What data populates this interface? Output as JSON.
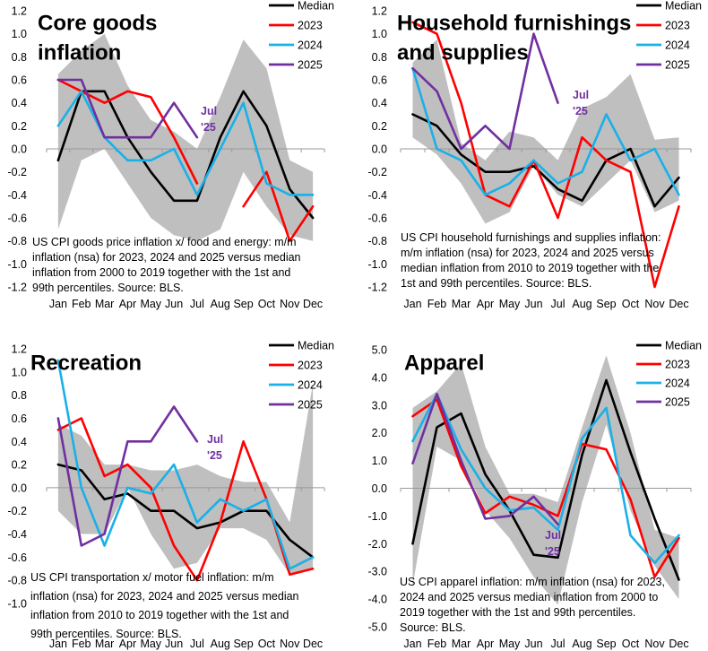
{
  "colors": {
    "median": "#000000",
    "y2023": "#ff0000",
    "y2024": "#1ab0e8",
    "y2025": "#7030a0",
    "band": "#bfbfbf"
  },
  "chart_data": [
    {
      "type": "line",
      "title": "Core goods inflation",
      "title_lines": [
        "Core goods",
        "inflation"
      ],
      "categories": [
        "Jan",
        "Feb",
        "Mar",
        "Apr",
        "May",
        "Jun",
        "Jul",
        "Aug",
        "Sep",
        "Oct",
        "Nov",
        "Dec"
      ],
      "ylim": [
        -1.2,
        1.2
      ],
      "yticks": [
        "1.2",
        "1.0",
        "0.8",
        "0.6",
        "0.4",
        "0.2",
        "0.0",
        "-0.2",
        "-0.4",
        "-0.6",
        "-0.8",
        "-1.0",
        "-1.2"
      ],
      "band": {
        "upper": [
          0.65,
          0.85,
          1.0,
          0.55,
          0.25,
          0.15,
          0.0,
          0.45,
          0.95,
          0.7,
          -0.1,
          -0.2
        ],
        "lower": [
          -0.7,
          -0.1,
          0.0,
          -0.3,
          -0.6,
          -0.75,
          -0.8,
          -0.7,
          -0.2,
          -0.5,
          -0.75,
          -0.8
        ]
      },
      "series": [
        {
          "name": "Median",
          "values": [
            -0.1,
            0.5,
            0.5,
            0.1,
            -0.2,
            -0.45,
            -0.45,
            0.1,
            0.5,
            0.2,
            -0.35,
            -0.6
          ]
        },
        {
          "name": "2023",
          "values": [
            0.6,
            0.5,
            0.4,
            0.5,
            0.45,
            0.1,
            -0.3,
            null,
            -0.5,
            -0.2,
            -0.8,
            -0.5
          ]
        },
        {
          "name": "2024",
          "values": [
            0.2,
            0.5,
            0.1,
            -0.1,
            -0.1,
            0.0,
            -0.4,
            0.0,
            0.4,
            -0.3,
            -0.4,
            -0.4
          ]
        },
        {
          "name": "2025",
          "values": [
            0.6,
            0.6,
            0.1,
            0.1,
            0.1,
            0.4,
            0.1,
            null,
            null,
            null,
            null,
            null
          ]
        }
      ],
      "legend": [
        "Median",
        "2023",
        "2024",
        "2025"
      ],
      "annotation": [
        "Jul",
        "'25"
      ],
      "caption": [
        "US CPI goods price inflation x/ food and energy: m/m",
        "inflation (nsa) for 2023, 2024 and 2025 versus median",
        "inflation from 2000 to 2019 together with the 1st and",
        "99th percentiles. Source: BLS."
      ]
    },
    {
      "type": "line",
      "title": "Household furnishings and supplies",
      "title_lines": [
        "Household furnishings",
        "and supplies"
      ],
      "categories": [
        "Jan",
        "Feb",
        "Mar",
        "Apr",
        "May",
        "Jun",
        "Jul",
        "Aug",
        "Sep",
        "Oct",
        "Nov",
        "Dec"
      ],
      "ylim": [
        -1.2,
        1.2
      ],
      "yticks": [
        "1.2",
        "1.0",
        "0.8",
        "0.6",
        "0.4",
        "0.2",
        "0.0",
        "-0.2",
        "-0.4",
        "-0.6",
        "-0.8",
        "-1.0",
        "-1.2"
      ],
      "band": {
        "upper": [
          0.75,
          0.95,
          0.05,
          -0.1,
          0.15,
          0.1,
          -0.1,
          0.35,
          0.45,
          0.65,
          0.08,
          0.1
        ],
        "lower": [
          0.1,
          -0.05,
          -0.3,
          -0.65,
          -0.55,
          -0.15,
          -0.4,
          -0.5,
          -0.3,
          -0.1,
          -0.55,
          -0.45
        ]
      },
      "series": [
        {
          "name": "Median",
          "values": [
            0.3,
            0.2,
            -0.05,
            -0.2,
            -0.2,
            -0.15,
            -0.35,
            -0.45,
            -0.1,
            0.0,
            -0.5,
            -0.25
          ]
        },
        {
          "name": "2023",
          "values": [
            1.1,
            1.0,
            0.4,
            -0.4,
            -0.5,
            -0.1,
            -0.6,
            0.1,
            -0.1,
            -0.2,
            -1.2,
            -0.5
          ]
        },
        {
          "name": "2024",
          "values": [
            0.7,
            0.0,
            -0.1,
            -0.4,
            -0.3,
            -0.1,
            -0.3,
            -0.2,
            0.3,
            -0.1,
            0.0,
            -0.4
          ]
        },
        {
          "name": "2025",
          "values": [
            0.7,
            0.5,
            0.0,
            0.2,
            0.0,
            1.0,
            0.4,
            null,
            null,
            null,
            null,
            null
          ]
        }
      ],
      "legend": [
        "Median",
        "2023",
        "2024",
        "2025"
      ],
      "annotation": [
        "Jul",
        "'25"
      ],
      "caption": [
        "US CPI household furnishings and supplies inflation:",
        "m/m inflation (nsa) for 2023, 2024 and 2025 versus",
        "median inflation from 2010 to 2019 together with the",
        "1st and 99th percentiles. Source: BLS."
      ]
    },
    {
      "type": "line",
      "title": "Recreation",
      "title_lines": [
        "Recreation"
      ],
      "categories": [
        "Jan",
        "Feb",
        "Mar",
        "Apr",
        "May",
        "Jun",
        "Jul",
        "Aug",
        "Sep",
        "Oct",
        "Nov",
        "Dec"
      ],
      "ylim": [
        -1.0,
        1.2
      ],
      "yticks": [
        "1.2",
        "1.0",
        "0.8",
        "0.6",
        "0.4",
        "0.2",
        "0.0",
        "-0.2",
        "-0.4",
        "-0.6",
        "-0.8",
        "-1.0"
      ],
      "band": {
        "upper": [
          0.55,
          0.45,
          0.2,
          0.2,
          0.15,
          0.15,
          0.2,
          0.1,
          0.05,
          0.05,
          -0.3,
          0.9
        ],
        "lower": [
          -0.2,
          -0.4,
          -0.4,
          0.0,
          -0.4,
          -0.7,
          -0.65,
          -0.35,
          -0.35,
          -0.45,
          -0.75,
          -0.7
        ]
      },
      "series": [
        {
          "name": "Median",
          "values": [
            0.2,
            0.15,
            -0.1,
            -0.05,
            -0.2,
            -0.2,
            -0.35,
            -0.3,
            -0.2,
            -0.2,
            -0.45,
            -0.6
          ]
        },
        {
          "name": "2023",
          "values": [
            0.5,
            0.6,
            0.1,
            0.2,
            0.0,
            -0.5,
            -0.8,
            -0.3,
            0.4,
            -0.1,
            -0.75,
            -0.7
          ]
        },
        {
          "name": "2024",
          "values": [
            1.1,
            0.0,
            -0.5,
            0.0,
            -0.05,
            0.2,
            -0.3,
            -0.1,
            -0.2,
            -0.1,
            -0.7,
            -0.6
          ]
        },
        {
          "name": "2025",
          "values": [
            0.6,
            -0.5,
            -0.4,
            0.4,
            0.4,
            0.7,
            0.4,
            null,
            null,
            null,
            null,
            null
          ]
        }
      ],
      "legend": [
        "Median",
        "2023",
        "2024",
        "2025"
      ],
      "annotation": [
        "Jul",
        "'25"
      ],
      "caption": [
        "US CPI transportation x/ motor fuel inflation: m/m",
        "inflation (nsa) for 2023, 2024 and 2025 versus median",
        "inflation from 2010 to 2019 together with the 1st and",
        "99th percentiles. Source: BLS."
      ]
    },
    {
      "type": "line",
      "title": "Apparel",
      "title_lines": [
        "Apparel"
      ],
      "categories": [
        "Jan",
        "Feb",
        "Mar",
        "Apr",
        "May",
        "Jun",
        "Jul",
        "Aug",
        "Sep",
        "Oct",
        "Nov",
        "Dec"
      ],
      "ylim": [
        -5.0,
        5.0
      ],
      "yticks": [
        "5.0",
        "4.0",
        "3.0",
        "2.0",
        "1.0",
        "0.0",
        "-1.0",
        "-2.0",
        "-3.0",
        "-4.0",
        "-5.0"
      ],
      "band": {
        "upper": [
          2.9,
          3.5,
          4.5,
          1.5,
          -0.2,
          -0.2,
          -0.5,
          2.2,
          4.8,
          2.0,
          -1.5,
          -1.8
        ],
        "lower": [
          -3.5,
          1.5,
          1.0,
          -0.8,
          -1.8,
          -3.2,
          -4.2,
          -0.5,
          2.3,
          -0.8,
          -2.8,
          -4.0
        ]
      },
      "series": [
        {
          "name": "Median",
          "values": [
            -2.0,
            2.2,
            2.7,
            0.5,
            -0.8,
            -2.4,
            -2.5,
            1.2,
            3.9,
            1.3,
            -1.1,
            -3.3
          ]
        },
        {
          "name": "2023",
          "values": [
            2.6,
            3.2,
            0.8,
            -0.9,
            -0.3,
            -0.6,
            -1.0,
            1.6,
            1.4,
            -0.4,
            -3.2,
            -1.8
          ]
        },
        {
          "name": "2024",
          "values": [
            1.7,
            3.4,
            1.4,
            0.0,
            -0.8,
            -0.7,
            -1.5,
            1.8,
            2.9,
            -1.7,
            -2.7,
            -1.7
          ]
        },
        {
          "name": "2025",
          "values": [
            0.9,
            3.4,
            1.0,
            -1.1,
            -1.0,
            -0.3,
            -1.3,
            null,
            null,
            null,
            null,
            null
          ]
        }
      ],
      "legend": [
        "Median",
        "2023",
        "2024",
        "2025"
      ],
      "annotation": [
        "Jul",
        "'25"
      ],
      "caption": [
        "US CPI apparel inflation: m/m inflation (nsa) for 2023,",
        "2024 and 2025 versus median inflation from 2000 to",
        "2019 together with the 1st and 99th percentiles.",
        "Source: BLS."
      ]
    }
  ]
}
